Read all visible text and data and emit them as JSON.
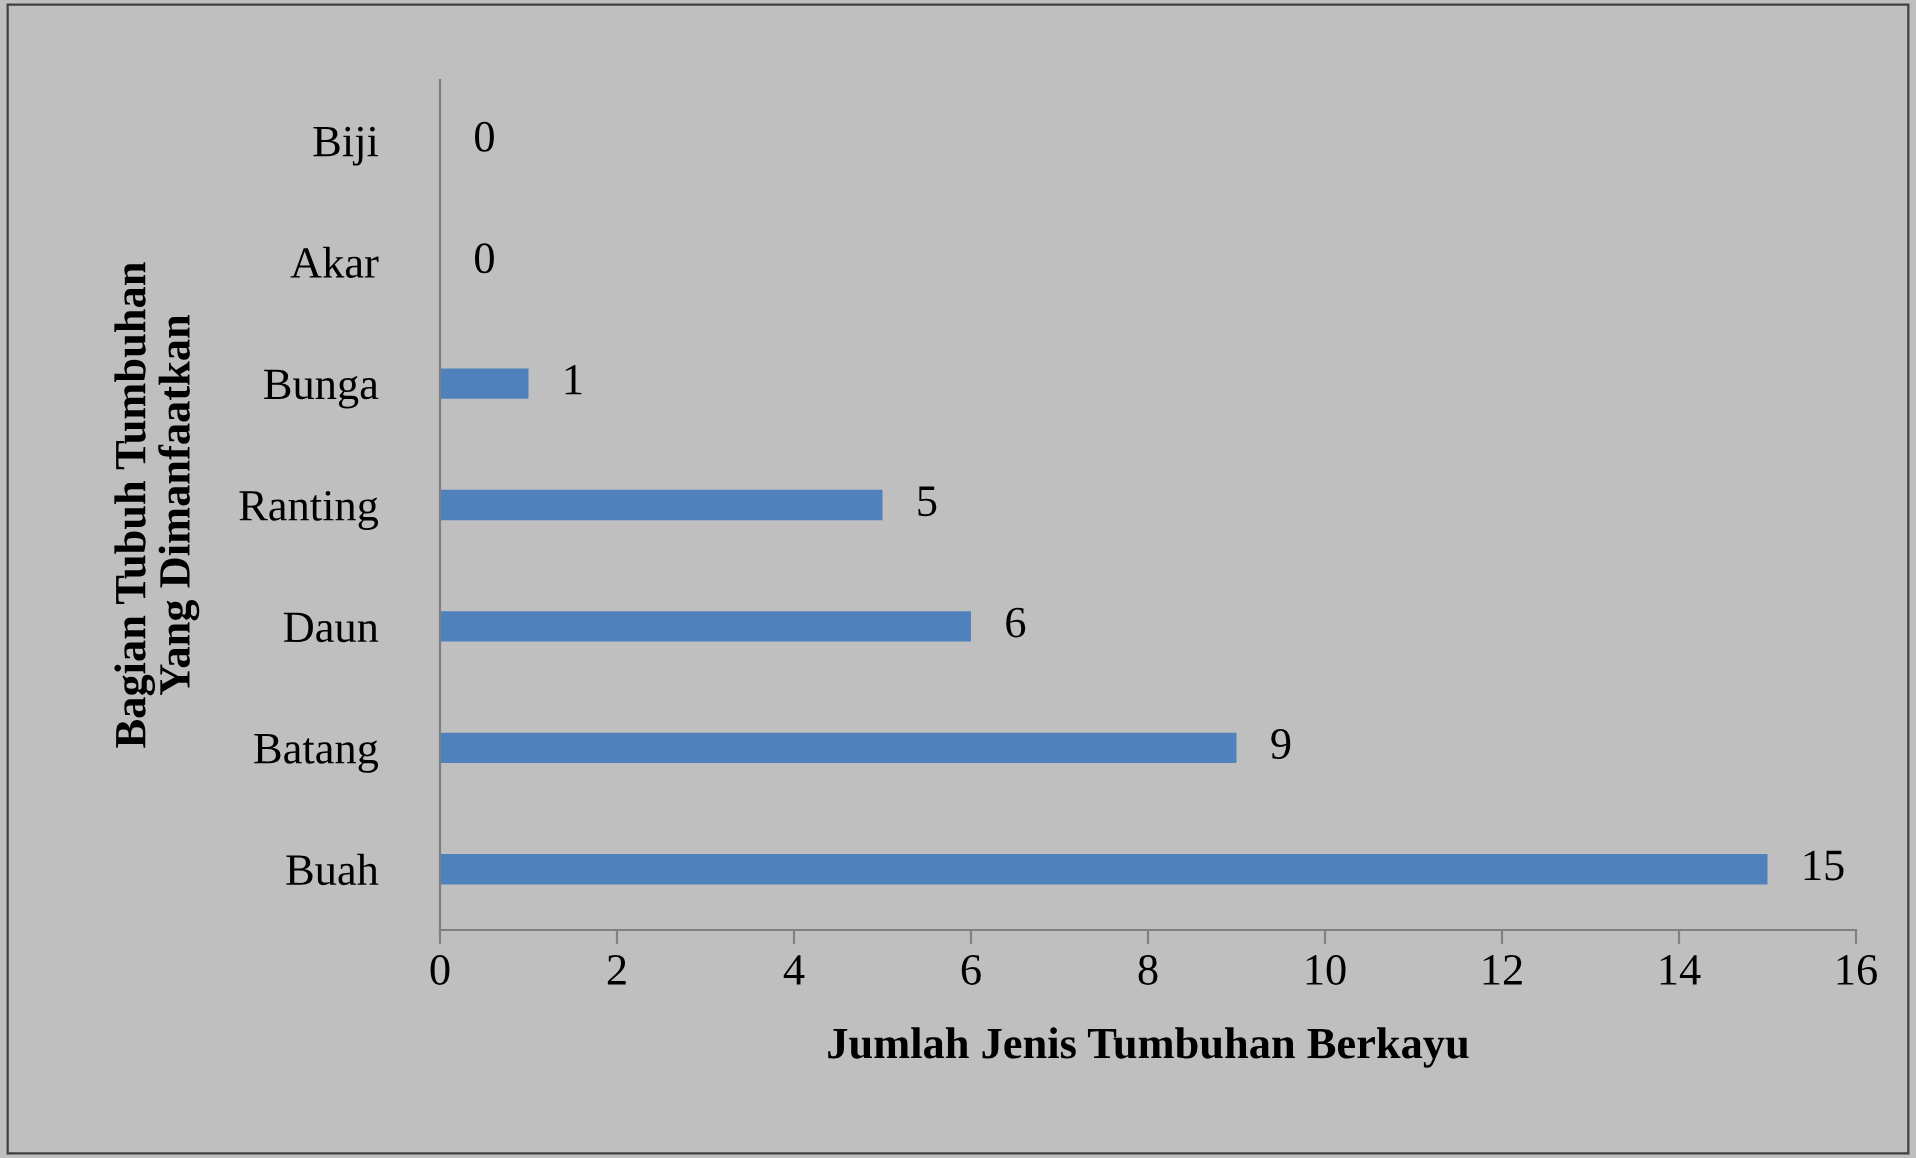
{
  "chart_data": {
    "type": "bar",
    "orientation": "horizontal",
    "categories": [
      "Biji",
      "Akar",
      "Bunga",
      "Ranting",
      "Daun",
      "Batang",
      "Buah"
    ],
    "values": [
      0,
      0,
      1,
      5,
      6,
      9,
      15
    ],
    "color": "#4f81bd",
    "data_labels": true,
    "xlabel": "Jumlah Jenis Tumbuhan Berkayu",
    "ylabel": "Bagian Tubuh Tumbuhan\nYang Dimanfaatkan",
    "xlim": [
      0,
      16
    ],
    "xticks": [
      0,
      2,
      4,
      6,
      8,
      10,
      12,
      14,
      16
    ],
    "grid": false,
    "legend": false
  }
}
